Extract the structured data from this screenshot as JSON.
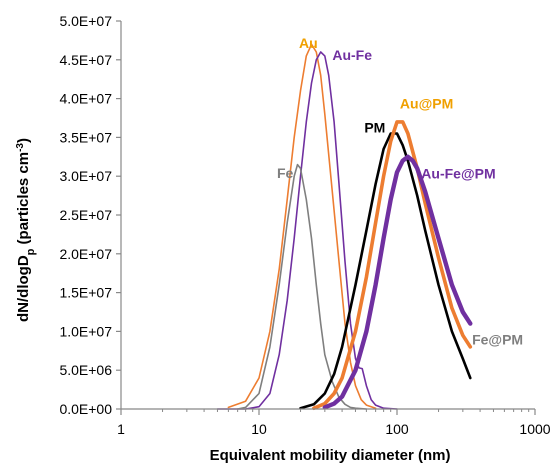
{
  "chart_data": {
    "type": "line",
    "xlabel": "Equivalent mobility diameter (nm)",
    "ylabel": "dN/dlogDp (particles cm-3)",
    "x_scale": "log",
    "xlim": [
      1,
      1000
    ],
    "ylim": [
      0,
      50000000
    ],
    "x_ticks": [
      1,
      10,
      100,
      1000
    ],
    "x_tick_labels": [
      "1",
      "10",
      "100",
      "1000"
    ],
    "y_ticks": [
      0,
      5000000,
      10000000,
      15000000,
      20000000,
      25000000,
      30000000,
      35000000,
      40000000,
      45000000,
      50000000
    ],
    "y_tick_labels": [
      "0.0E+00",
      "5.0E+06",
      "1.0E+07",
      "1.5E+07",
      "2.0E+07",
      "2.5E+07",
      "3.0E+07",
      "3.5E+07",
      "4.0E+07",
      "4.5E+07",
      "5.0E+07"
    ],
    "grid": false,
    "series": [
      {
        "name": "Au",
        "color": "#ed7d31",
        "width": 1.6,
        "x": [
          6,
          8,
          10,
          12,
          14,
          16,
          18,
          20,
          22,
          24,
          26,
          28,
          30,
          34,
          38,
          42,
          46,
          50,
          55,
          60,
          70
        ],
        "y": [
          200000,
          1000000,
          4000000,
          10000000,
          18000000,
          27000000,
          35000000,
          41000000,
          45500000,
          47000000,
          46000000,
          43000000,
          38000000,
          28000000,
          19000000,
          11000000,
          6000000,
          3000000,
          1200000,
          500000,
          100000
        ]
      },
      {
        "name": "Au-Fe",
        "color": "#7030a0",
        "width": 1.6,
        "x": [
          5,
          8,
          10,
          12,
          14,
          16,
          18,
          20,
          22,
          24,
          26,
          28,
          30,
          32,
          35,
          38,
          42,
          46,
          50,
          53,
          56,
          60,
          65,
          70,
          80,
          100
        ],
        "y": [
          0,
          0,
          300000,
          2000000,
          7000000,
          14000000,
          22000000,
          30000000,
          37000000,
          42000000,
          45000000,
          46000000,
          45500000,
          43000000,
          37000000,
          29000000,
          19000000,
          11000000,
          6500000,
          5300000,
          5200000,
          3000000,
          1200000,
          500000,
          100000,
          0
        ]
      },
      {
        "name": "Fe",
        "color": "#7f7f7f",
        "width": 1.6,
        "x": [
          7,
          8,
          10,
          12,
          14,
          16,
          18,
          19,
          20,
          22,
          24,
          26,
          28,
          30,
          34,
          38,
          42,
          46,
          50,
          60
        ],
        "y": [
          0,
          200000,
          2000000,
          8000000,
          16000000,
          24000000,
          30000000,
          31500000,
          31000000,
          27000000,
          22000000,
          16000000,
          11000000,
          7000000,
          3500000,
          1500000,
          600000,
          200000,
          100000,
          0
        ]
      },
      {
        "name": "PM",
        "color": "#000000",
        "width": 2.6,
        "x": [
          20,
          25,
          30,
          35,
          40,
          50,
          60,
          70,
          80,
          90,
          100,
          110,
          120,
          140,
          160,
          200,
          250,
          300,
          340
        ],
        "y": [
          100000,
          600000,
          2000000,
          4500000,
          8000000,
          16000000,
          23000000,
          29000000,
          33500000,
          35500000,
          35500000,
          34000000,
          32000000,
          27500000,
          23000000,
          16000000,
          10000000,
          6500000,
          4000000
        ]
      },
      {
        "name": "Au@PM",
        "color": "#ed7d31",
        "width": 3.6,
        "x": [
          25,
          30,
          35,
          40,
          50,
          60,
          70,
          80,
          90,
          100,
          110,
          120,
          140,
          160,
          200,
          250,
          300,
          340
        ],
        "y": [
          100000,
          700000,
          2000000,
          4000000,
          10000000,
          17000000,
          24000000,
          30000000,
          34500000,
          37000000,
          37000000,
          35500000,
          31000000,
          26500000,
          19500000,
          13000000,
          9500000,
          8000000
        ]
      },
      {
        "name": "Au-Fe@PM",
        "color": "#7030a0",
        "width": 4.4,
        "x": [
          30,
          35,
          40,
          50,
          60,
          70,
          80,
          90,
          100,
          110,
          120,
          130,
          140,
          160,
          200,
          250,
          300,
          340
        ],
        "y": [
          200000,
          700000,
          1600000,
          5000000,
          10000000,
          16000000,
          22000000,
          27000000,
          30500000,
          32000000,
          32500000,
          32000000,
          31000000,
          28000000,
          22000000,
          16000000,
          12500000,
          11000000
        ]
      }
    ],
    "annotations": [
      {
        "text": "Au",
        "color": "#f0a000",
        "x": 19.5,
        "y": 46500000
      },
      {
        "text": "Au-Fe",
        "color": "#7030a0",
        "x": 34,
        "y": 45000000
      },
      {
        "text": "Fe",
        "color": "#7f7f7f",
        "x": 13.5,
        "y": 29800000
      },
      {
        "text": "PM",
        "color": "#000000",
        "x": 58,
        "y": 35600000
      },
      {
        "text": "Au@PM",
        "color": "#f0a000",
        "x": 105,
        "y": 38700000
      },
      {
        "text": "Au-Fe@PM",
        "color": "#7030a0",
        "x": 150,
        "y": 29700000
      },
      {
        "text": "Fe@PM",
        "color": "#7f7f7f",
        "x": 350,
        "y": 8300000
      }
    ]
  }
}
